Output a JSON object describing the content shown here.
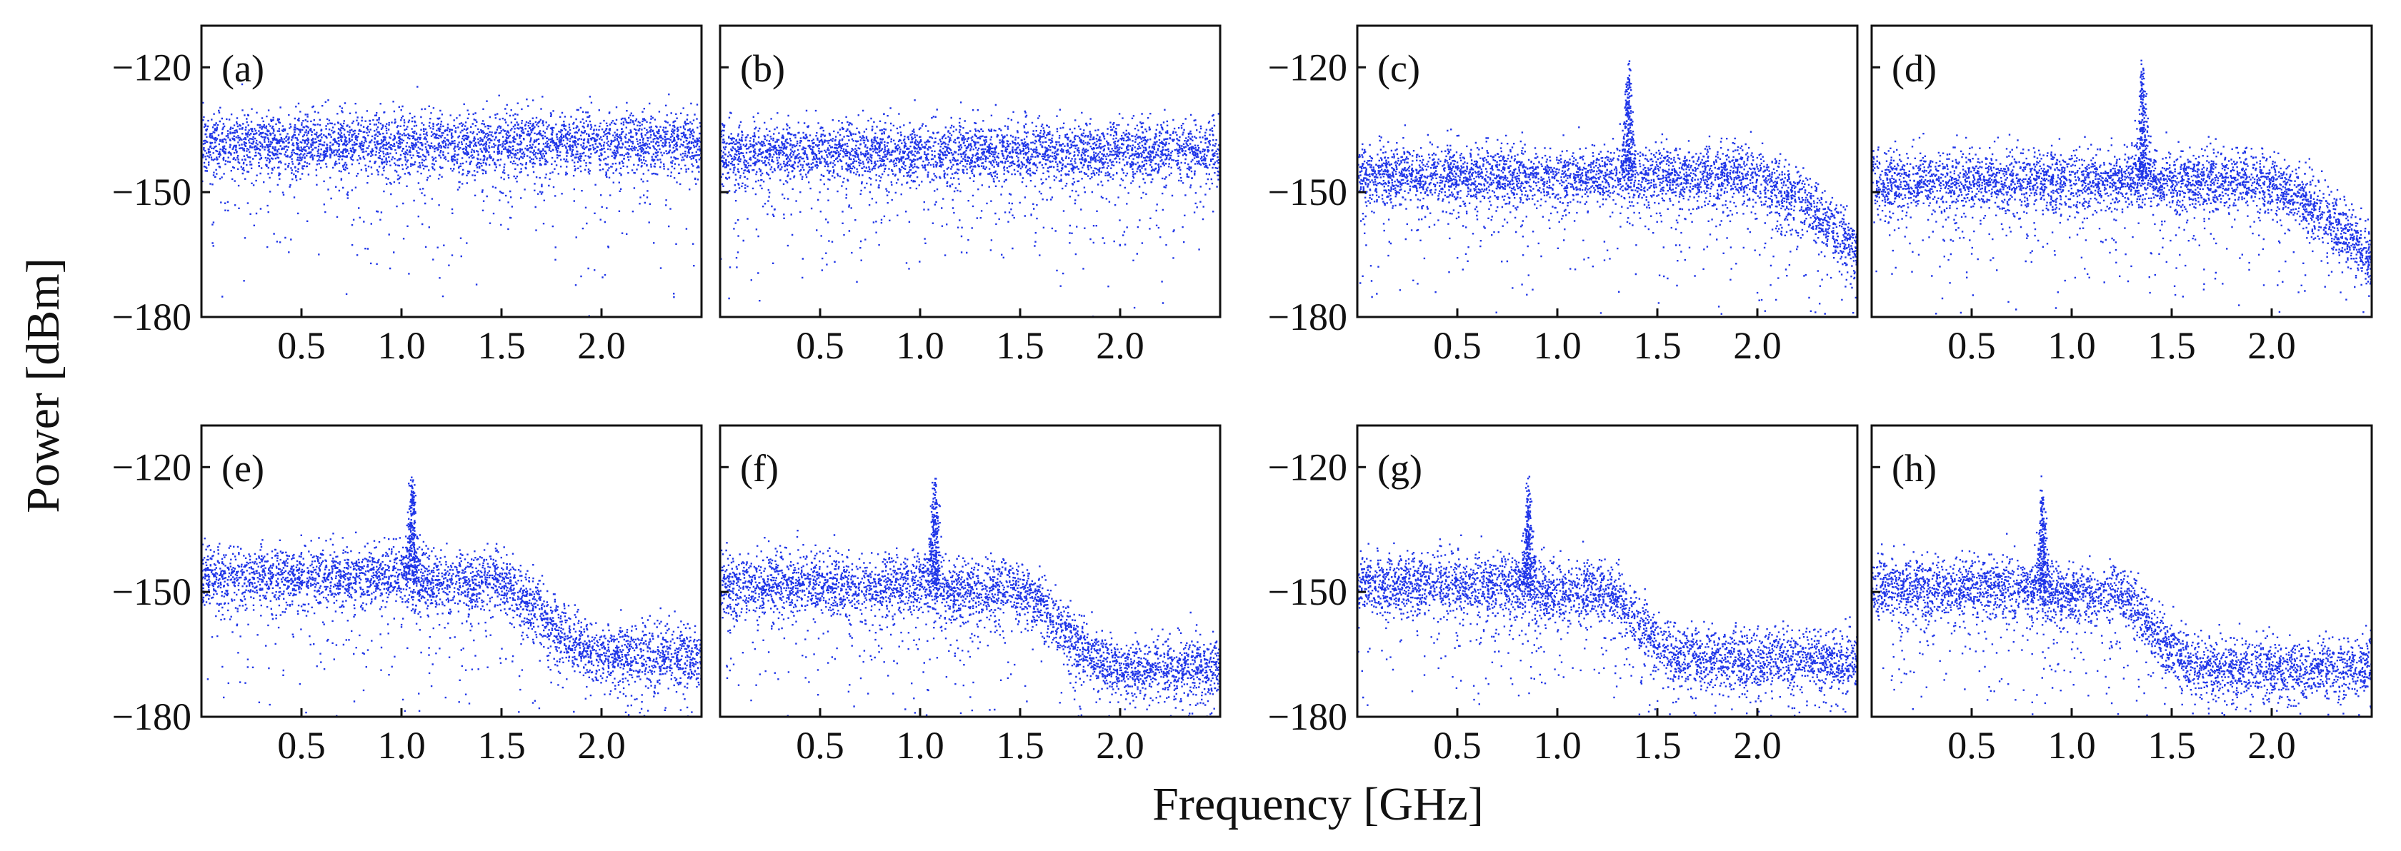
{
  "figure": {
    "ylabel": "Power [dBm]",
    "xlabel": "Frequency [GHz]"
  },
  "chart_data": {
    "type": "scatter",
    "x_range_ghz": [
      0.0,
      2.5
    ],
    "y_range_dbm": [
      -180,
      -110
    ],
    "x_ticks": [
      0.5,
      1.0,
      1.5,
      2.0
    ],
    "x_tick_labels": [
      "0.5",
      "1.0",
      "1.5",
      "2.0"
    ],
    "y_ticks": [
      -120,
      -150,
      -180
    ],
    "y_tick_labels": [
      "−120",
      "−150",
      "−180"
    ],
    "marker_color": "#1f35e8",
    "panels": [
      {
        "label": "(a)",
        "noise_floor_dbm": -138,
        "peak": null,
        "rolloff": null
      },
      {
        "label": "(b)",
        "noise_floor_dbm": -140,
        "peak": null,
        "rolloff": null
      },
      {
        "label": "(c)",
        "noise_floor_dbm": -146,
        "peak": {
          "freq_ghz": 1.35,
          "power_dbm": -117
        },
        "rolloff": {
          "start_ghz": 1.9,
          "end_ghz": 2.5,
          "floor_dbm": -165,
          "shape": "curve"
        }
      },
      {
        "label": "(d)",
        "noise_floor_dbm": -147,
        "peak": {
          "freq_ghz": 1.35,
          "power_dbm": -118
        },
        "rolloff": {
          "start_ghz": 1.9,
          "end_ghz": 2.5,
          "floor_dbm": -167,
          "shape": "curve"
        }
      },
      {
        "label": "(e)",
        "noise_floor_dbm": -146,
        "peak": {
          "freq_ghz": 1.05,
          "power_dbm": -121
        },
        "rolloff": {
          "start_ghz": 1.4,
          "end_ghz": 2.0,
          "floor_dbm": -165,
          "shape": "step"
        }
      },
      {
        "label": "(f)",
        "noise_floor_dbm": -148,
        "peak": {
          "freq_ghz": 1.07,
          "power_dbm": -122
        },
        "rolloff": {
          "start_ghz": 1.4,
          "end_ghz": 2.0,
          "floor_dbm": -168,
          "shape": "step"
        }
      },
      {
        "label": "(g)",
        "noise_floor_dbm": -148,
        "peak": {
          "freq_ghz": 0.85,
          "power_dbm": -122
        },
        "rolloff": {
          "start_ghz": 1.15,
          "end_ghz": 1.65,
          "floor_dbm": -166,
          "shape": "step"
        }
      },
      {
        "label": "(h)",
        "noise_floor_dbm": -149,
        "peak": {
          "freq_ghz": 0.85,
          "power_dbm": -124
        },
        "rolloff": {
          "start_ghz": 1.15,
          "end_ghz": 1.65,
          "floor_dbm": -168,
          "shape": "step"
        }
      }
    ]
  }
}
